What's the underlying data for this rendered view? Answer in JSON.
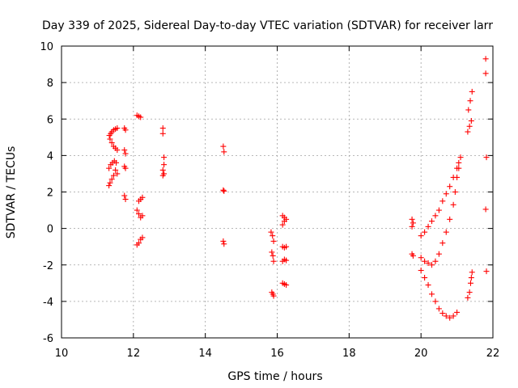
{
  "chart_data": {
    "type": "scatter",
    "title": "Day 339 of 2025, Sidereal Day-to-day VTEC variation (SDTVAR) for receiver larr",
    "xlabel": "GPS time / hours",
    "ylabel": "SDTVAR / TECUs",
    "xlim": [
      10,
      22
    ],
    "ylim": [
      -6,
      10
    ],
    "x_ticks": [
      10,
      12,
      14,
      16,
      18,
      20,
      22
    ],
    "y_ticks": [
      -6,
      -4,
      -2,
      0,
      2,
      4,
      6,
      8,
      10
    ],
    "grid": true,
    "legend": "none",
    "marker": "plus",
    "color": "#ff0000",
    "series": [
      {
        "points": [
          [
            11.33,
            5.1
          ],
          [
            11.37,
            5.2
          ],
          [
            11.4,
            5.3
          ],
          [
            11.45,
            5.4
          ],
          [
            11.5,
            5.45
          ],
          [
            11.55,
            5.5
          ],
          [
            11.35,
            4.9
          ],
          [
            11.4,
            4.7
          ],
          [
            11.45,
            4.5
          ],
          [
            11.5,
            4.4
          ],
          [
            11.55,
            4.3
          ],
          [
            11.32,
            3.3
          ],
          [
            11.37,
            3.5
          ],
          [
            11.42,
            3.6
          ],
          [
            11.47,
            3.7
          ],
          [
            11.52,
            3.6
          ],
          [
            11.5,
            3.2
          ],
          [
            11.55,
            3.0
          ],
          [
            11.45,
            2.9
          ],
          [
            11.4,
            2.7
          ],
          [
            11.35,
            2.5
          ],
          [
            11.32,
            2.35
          ],
          [
            11.75,
            5.5
          ],
          [
            11.78,
            5.4
          ],
          [
            11.75,
            4.3
          ],
          [
            11.78,
            4.1
          ],
          [
            11.75,
            3.4
          ],
          [
            11.78,
            3.3
          ],
          [
            11.75,
            1.8
          ],
          [
            11.78,
            1.6
          ],
          [
            12.1,
            6.2
          ],
          [
            12.15,
            6.15
          ],
          [
            12.2,
            6.1
          ],
          [
            12.15,
            1.5
          ],
          [
            12.2,
            1.6
          ],
          [
            12.25,
            1.7
          ],
          [
            12.1,
            1.0
          ],
          [
            12.15,
            0.8
          ],
          [
            12.2,
            0.6
          ],
          [
            12.25,
            0.7
          ],
          [
            12.1,
            -0.9
          ],
          [
            12.15,
            -0.8
          ],
          [
            12.2,
            -0.6
          ],
          [
            12.25,
            -0.5
          ],
          [
            12.82,
            5.5
          ],
          [
            12.82,
            5.2
          ],
          [
            12.85,
            3.9
          ],
          [
            12.85,
            3.5
          ],
          [
            12.82,
            3.2
          ],
          [
            12.85,
            3.0
          ],
          [
            12.82,
            2.9
          ],
          [
            14.5,
            4.5
          ],
          [
            14.52,
            4.2
          ],
          [
            14.5,
            2.1
          ],
          [
            14.52,
            2.05
          ],
          [
            14.5,
            -0.7
          ],
          [
            14.52,
            -0.85
          ],
          [
            15.83,
            -0.2
          ],
          [
            15.87,
            -0.4
          ],
          [
            15.9,
            -0.7
          ],
          [
            15.85,
            -1.3
          ],
          [
            15.88,
            -1.5
          ],
          [
            15.9,
            -1.8
          ],
          [
            15.85,
            -3.5
          ],
          [
            15.88,
            -3.6
          ],
          [
            15.9,
            -3.7
          ],
          [
            16.15,
            0.7
          ],
          [
            16.2,
            0.6
          ],
          [
            16.25,
            0.5
          ],
          [
            16.15,
            0.2
          ],
          [
            16.2,
            0.4
          ],
          [
            16.15,
            -1.0
          ],
          [
            16.2,
            -1.05
          ],
          [
            16.25,
            -1.0
          ],
          [
            16.15,
            -1.8
          ],
          [
            16.2,
            -1.7
          ],
          [
            16.25,
            -1.75
          ],
          [
            16.15,
            -3.0
          ],
          [
            16.2,
            -3.05
          ],
          [
            16.25,
            -3.1
          ],
          [
            19.75,
            0.5
          ],
          [
            19.78,
            0.3
          ],
          [
            19.75,
            0.1
          ],
          [
            19.75,
            -1.4
          ],
          [
            19.78,
            -1.5
          ],
          [
            20.0,
            -0.4
          ],
          [
            20.1,
            -0.2
          ],
          [
            20.2,
            0.1
          ],
          [
            20.3,
            0.4
          ],
          [
            20.4,
            0.7
          ],
          [
            20.5,
            1.0
          ],
          [
            20.6,
            1.5
          ],
          [
            20.7,
            1.9
          ],
          [
            20.8,
            2.3
          ],
          [
            20.9,
            2.8
          ],
          [
            21.0,
            3.3
          ],
          [
            21.05,
            3.6
          ],
          [
            21.1,
            3.9
          ],
          [
            20.0,
            -1.6
          ],
          [
            20.1,
            -1.8
          ],
          [
            20.2,
            -1.9
          ],
          [
            20.3,
            -2.0
          ],
          [
            20.4,
            -1.8
          ],
          [
            20.5,
            -1.4
          ],
          [
            20.6,
            -0.8
          ],
          [
            20.7,
            -0.2
          ],
          [
            20.8,
            0.5
          ],
          [
            20.9,
            1.3
          ],
          [
            20.95,
            2.0
          ],
          [
            21.0,
            2.8
          ],
          [
            21.05,
            3.3
          ],
          [
            20.0,
            -2.3
          ],
          [
            20.1,
            -2.7
          ],
          [
            20.2,
            -3.1
          ],
          [
            20.3,
            -3.6
          ],
          [
            20.4,
            -4.0
          ],
          [
            20.5,
            -4.4
          ],
          [
            20.6,
            -4.65
          ],
          [
            20.7,
            -4.8
          ],
          [
            20.8,
            -4.9
          ],
          [
            20.9,
            -4.8
          ],
          [
            21.0,
            -4.6
          ],
          [
            21.3,
            -3.8
          ],
          [
            21.35,
            -3.5
          ],
          [
            21.38,
            -3.0
          ],
          [
            21.4,
            -2.7
          ],
          [
            21.42,
            -2.4
          ],
          [
            21.3,
            5.3
          ],
          [
            21.35,
            5.6
          ],
          [
            21.4,
            5.9
          ],
          [
            21.32,
            6.5
          ],
          [
            21.37,
            7.0
          ],
          [
            21.42,
            7.5
          ],
          [
            21.8,
            9.3
          ],
          [
            21.8,
            8.5
          ],
          [
            21.82,
            3.9
          ],
          [
            21.8,
            1.05
          ],
          [
            21.82,
            -2.35
          ]
        ]
      }
    ]
  }
}
